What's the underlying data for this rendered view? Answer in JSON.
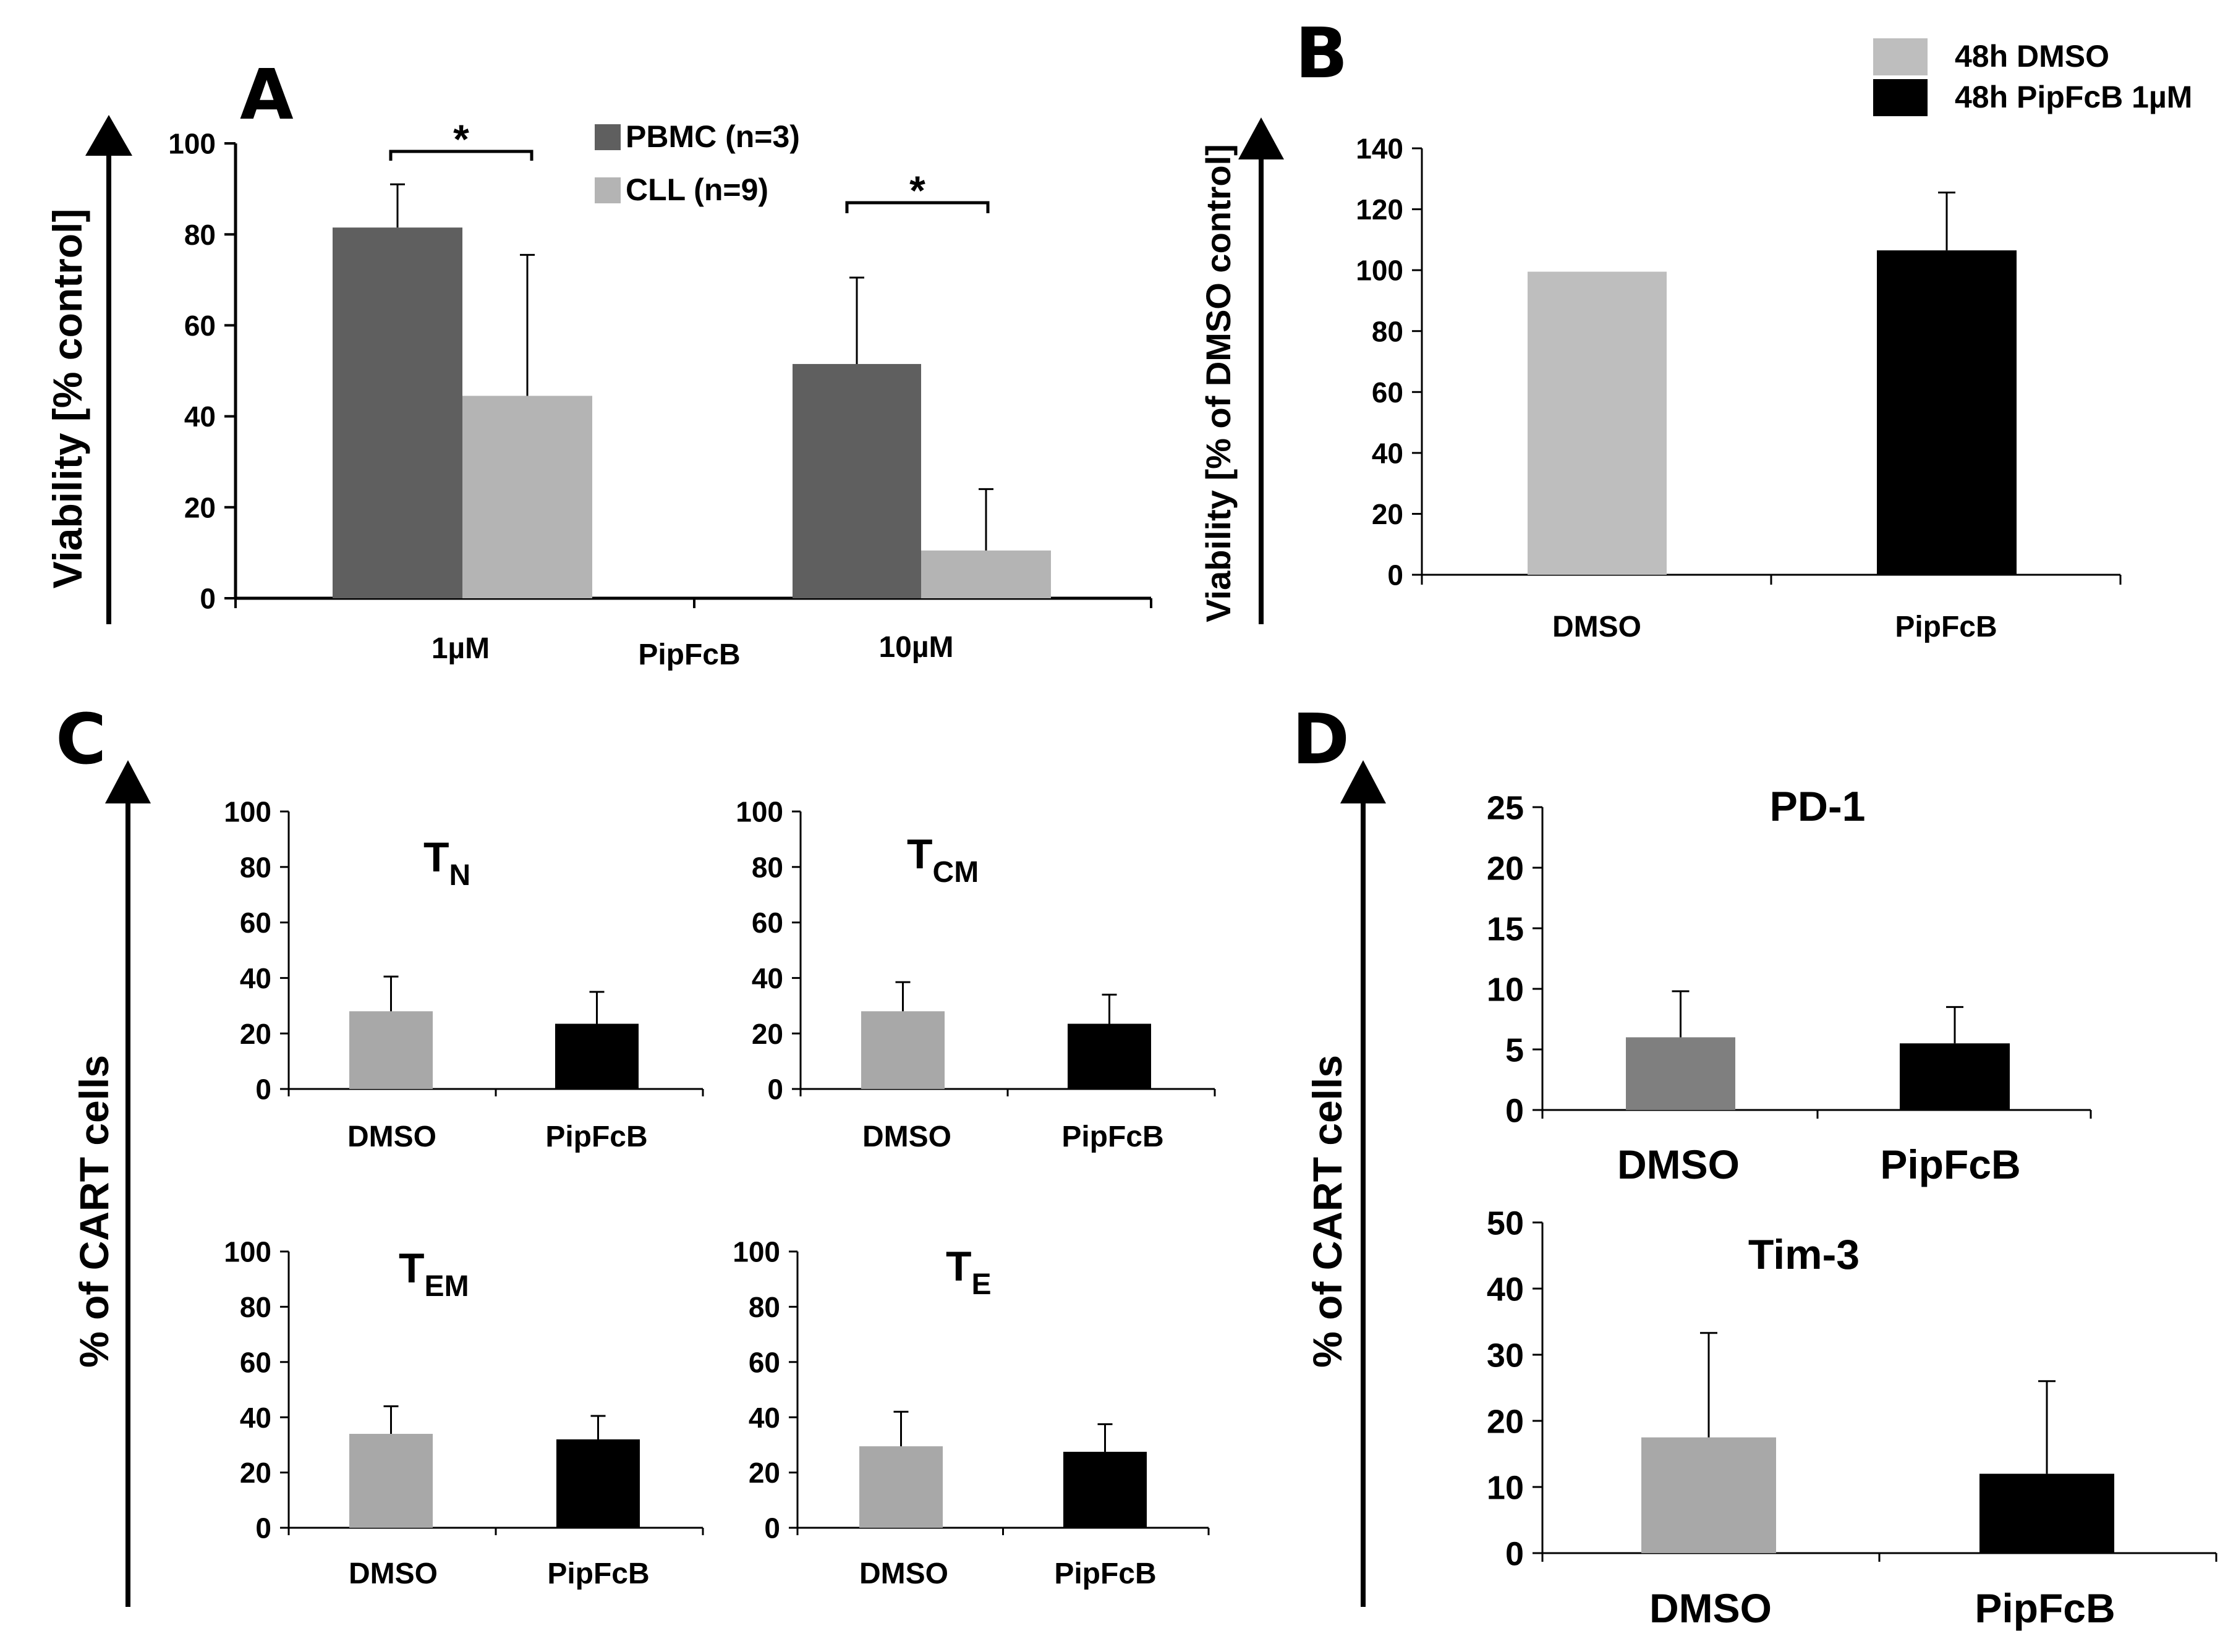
{
  "colors": {
    "pbmc": "#5f5f5f",
    "cll": "#b4b4b4",
    "dmso": "#bebebe",
    "pipfcb": "#000000",
    "dmso_c": "#a8a8a8",
    "dmso_pd1": "#7f7f7f",
    "axis": "#000000",
    "error": "#000000"
  },
  "chart_data": [
    {
      "id": "A",
      "type": "bar",
      "panel_label": "A",
      "ylabel": "Viability [% control]",
      "ylim": [
        0,
        100
      ],
      "yticks": [
        0,
        20,
        40,
        60,
        80,
        100
      ],
      "categories": [
        "1µM",
        "10µM"
      ],
      "center_label": "PipFcB",
      "series": [
        {
          "name": "PBMC (n=3)",
          "values": [
            81.5,
            51.5
          ],
          "errors": [
            9.5,
            19
          ]
        },
        {
          "name": "CLL (n=9)",
          "values": [
            44.5,
            10.5
          ],
          "errors": [
            31,
            13.5
          ]
        }
      ],
      "annotations": [
        {
          "text": "*",
          "group": "1µM"
        },
        {
          "text": "*",
          "group": "10µM"
        }
      ],
      "legend": "top-right"
    },
    {
      "id": "B",
      "type": "bar",
      "panel_label": "B",
      "ylabel": "Viability [% of DMSO control]",
      "ylim": [
        0,
        140
      ],
      "yticks": [
        0,
        20,
        40,
        60,
        80,
        100,
        120,
        140
      ],
      "categories": [
        "DMSO",
        "PipFcB"
      ],
      "series": [
        {
          "name": "value",
          "values": [
            99.5,
            106.5
          ],
          "errors": [
            0,
            19
          ]
        }
      ],
      "legend_entries": [
        "48h DMSO",
        "48h PipFcB 1µM"
      ],
      "legend": "top-right"
    },
    {
      "id": "C",
      "type": "bar",
      "panel_label": "C",
      "ylabel": "% of CART cells",
      "ylim": [
        0,
        100
      ],
      "yticks": [
        0,
        20,
        40,
        60,
        80,
        100
      ],
      "subplots": [
        {
          "title": "T",
          "title_sub": "N",
          "categories": [
            "DMSO",
            "PipFcB"
          ],
          "values": [
            28,
            23.5
          ],
          "errors": [
            12.5,
            11.5
          ]
        },
        {
          "title": "T",
          "title_sub": "CM",
          "categories": [
            "DMSO",
            "PipFcB"
          ],
          "values": [
            28,
            23.5
          ],
          "errors": [
            10.5,
            10.5
          ]
        },
        {
          "title": "T",
          "title_sub": "EM",
          "categories": [
            "DMSO",
            "PipFcB"
          ],
          "values": [
            34,
            32
          ],
          "errors": [
            10,
            8.5
          ]
        },
        {
          "title": "T",
          "title_sub": "E",
          "categories": [
            "DMSO",
            "PipFcB"
          ],
          "values": [
            29.5,
            27.5
          ],
          "errors": [
            12.5,
            10
          ]
        }
      ]
    },
    {
      "id": "D",
      "type": "bar",
      "panel_label": "D",
      "ylabel": "% of CART cells",
      "subplots": [
        {
          "title": "PD-1",
          "ylim": [
            0,
            25
          ],
          "yticks": [
            0,
            5,
            10,
            15,
            20,
            25
          ],
          "categories": [
            "DMSO",
            "PipFcB"
          ],
          "values": [
            6,
            5.5
          ],
          "errors": [
            3.8,
            3
          ]
        },
        {
          "title": "Tim-3",
          "ylim": [
            0,
            50
          ],
          "yticks": [
            0,
            10,
            20,
            30,
            40,
            50
          ],
          "categories": [
            "DMSO",
            "PipFcB"
          ],
          "values": [
            17.5,
            12
          ],
          "errors": [
            15.8,
            14
          ]
        }
      ]
    }
  ]
}
